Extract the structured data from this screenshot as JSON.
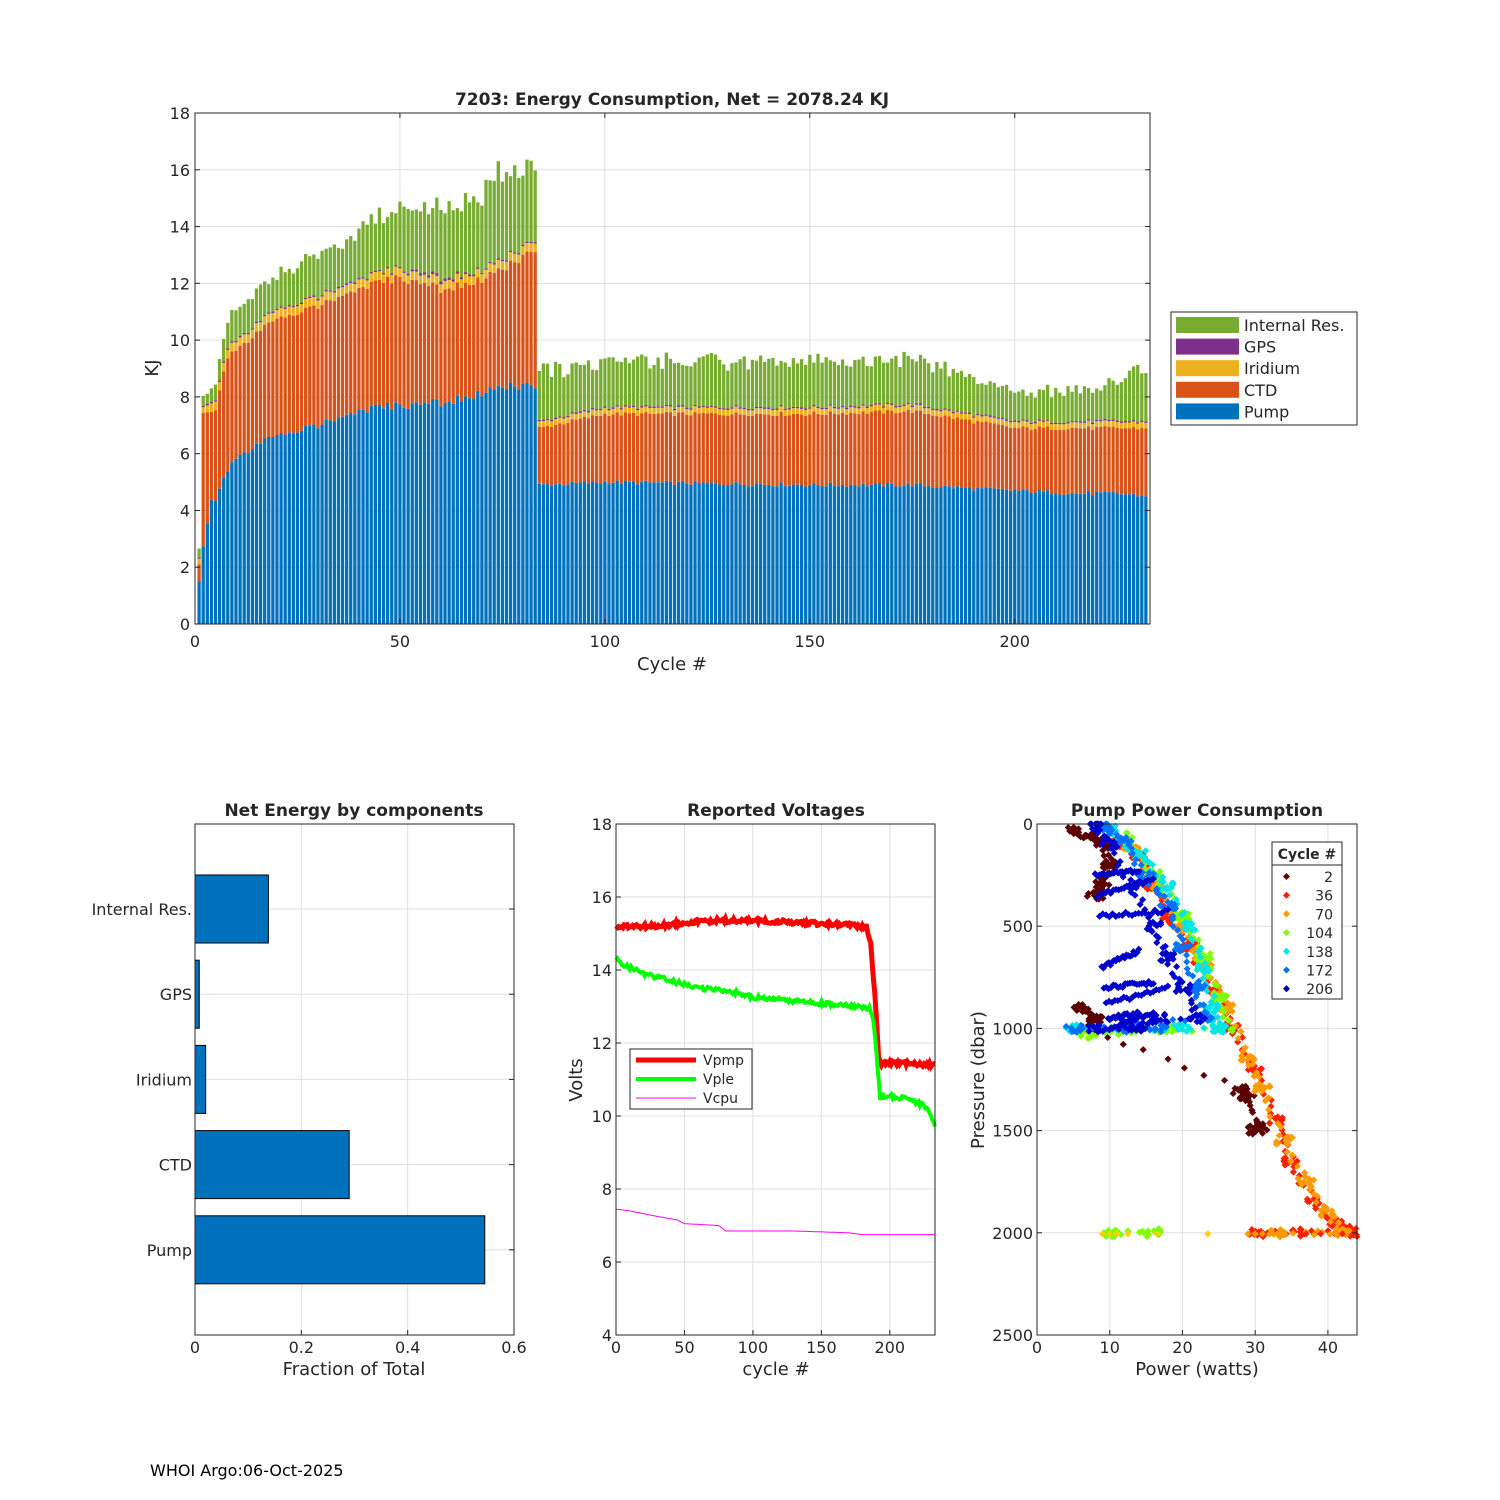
{
  "footer": "WHOI Argo:06-Oct-2025",
  "colors": {
    "pump": "#0072BD",
    "ctd": "#D95319",
    "iridium": "#EDB120",
    "gps": "#7E2F8E",
    "internal": "#77AC30",
    "vpmp": "#FF0000",
    "vple": "#00FF00",
    "vcpu": "#FF00FF"
  },
  "chart_data": [
    {
      "type": "bar",
      "stacked": true,
      "title": "7203: Energy Consumption,  Net = 2078.24 KJ",
      "xlabel": "Cycle #",
      "ylabel": "KJ",
      "xlim": [
        0,
        233
      ],
      "ylim": [
        0,
        18
      ],
      "xticks": [
        0,
        50,
        100,
        150,
        200
      ],
      "yticks": [
        0,
        2,
        4,
        6,
        8,
        10,
        12,
        14,
        16,
        18
      ],
      "legend_position": "outside-right",
      "legend": [
        "Internal Res.",
        "GPS",
        "Iridium",
        "CTD",
        "Pump"
      ],
      "series_description": "Per-cycle stacked energy; values estimated at anchor cycles and interpolated",
      "anchors": {
        "cycle": [
          1,
          2,
          4,
          5,
          8,
          10,
          20,
          30,
          40,
          50,
          60,
          70,
          76,
          83,
          84,
          100,
          150,
          175,
          200,
          215,
          225,
          233
        ],
        "pump": [
          1.5,
          2.7,
          4.3,
          4.4,
          5.4,
          5.8,
          6.7,
          7.0,
          7.5,
          7.7,
          7.8,
          8.1,
          8.4,
          8.3,
          4.9,
          5.0,
          4.9,
          4.9,
          4.7,
          4.6,
          4.6,
          4.5
        ],
        "ctd": [
          0.6,
          4.7,
          3.1,
          3.2,
          4.0,
          3.8,
          4.1,
          4.2,
          4.3,
          4.5,
          4.0,
          4.0,
          4.2,
          4.8,
          2.0,
          2.4,
          2.5,
          2.6,
          2.2,
          2.3,
          2.3,
          2.4
        ],
        "iridium": [
          0.2,
          0.2,
          0.3,
          0.3,
          0.3,
          0.3,
          0.3,
          0.3,
          0.3,
          0.3,
          0.3,
          0.3,
          0.3,
          0.3,
          0.2,
          0.2,
          0.2,
          0.2,
          0.2,
          0.2,
          0.2,
          0.2
        ],
        "gps": [
          0.05,
          0.05,
          0.05,
          0.05,
          0.05,
          0.05,
          0.05,
          0.05,
          0.05,
          0.05,
          0.1,
          0.05,
          0.05,
          0.05,
          0.05,
          0.05,
          0.05,
          0.05,
          0.05,
          0.05,
          0.05,
          0.05
        ],
        "internal": [
          0.3,
          0.3,
          0.5,
          0.6,
          0.9,
          1.0,
          1.2,
          1.4,
          1.7,
          2.1,
          2.4,
          2.7,
          3.2,
          2.4,
          1.7,
          1.6,
          1.6,
          1.6,
          1.0,
          1.1,
          1.3,
          2.0
        ]
      }
    },
    {
      "type": "barh",
      "title": "Net Energy by components",
      "xlabel": "Fraction of Total",
      "xlim": [
        0,
        0.6
      ],
      "xticks": [
        0,
        0.2,
        0.4,
        0.6
      ],
      "categories": [
        "Internal Res.",
        "GPS",
        "Iridium",
        "CTD",
        "Pump"
      ],
      "values": [
        0.138,
        0.008,
        0.02,
        0.29,
        0.545
      ]
    },
    {
      "type": "line",
      "title": "Reported Voltages",
      "xlabel": "cycle #",
      "ylabel": "Volts",
      "xlim": [
        0,
        233
      ],
      "ylim": [
        4,
        18
      ],
      "xticks": [
        0,
        50,
        100,
        150,
        200
      ],
      "yticks": [
        4,
        6,
        8,
        10,
        12,
        14,
        16,
        18
      ],
      "legend_position": "middle-left",
      "series": [
        {
          "name": "Vpmp",
          "x": [
            0,
            10,
            30,
            50,
            70,
            100,
            130,
            160,
            183,
            186,
            188,
            190,
            192,
            194,
            200,
            233
          ],
          "y": [
            15.15,
            15.2,
            15.2,
            15.3,
            15.35,
            15.35,
            15.3,
            15.25,
            15.2,
            14.7,
            13.8,
            12.8,
            11.5,
            11.45,
            11.45,
            11.4
          ]
        },
        {
          "name": "Vple",
          "x": [
            0,
            5,
            20,
            40,
            60,
            80,
            100,
            130,
            160,
            185,
            188,
            190,
            193,
            195,
            210,
            225,
            230,
            233
          ],
          "y": [
            14.3,
            14.15,
            13.9,
            13.7,
            13.5,
            13.45,
            13.25,
            13.15,
            13.05,
            12.95,
            12.6,
            11.8,
            10.5,
            10.55,
            10.5,
            10.3,
            10.0,
            9.7
          ]
        },
        {
          "name": "Vcpu",
          "x": [
            0,
            10,
            30,
            45,
            50,
            75,
            80,
            130,
            170,
            180,
            233
          ],
          "y": [
            7.45,
            7.4,
            7.25,
            7.15,
            7.05,
            7.0,
            6.85,
            6.85,
            6.8,
            6.75,
            6.75
          ]
        }
      ]
    },
    {
      "type": "scatter",
      "title": "Pump Power Consumption",
      "xlabel": "Power (watts)",
      "ylabel": "Pressure (dbar)",
      "xlim": [
        0,
        44
      ],
      "ylim": [
        0,
        2500
      ],
      "y_reversed": true,
      "xticks": [
        0,
        10,
        20,
        30,
        40
      ],
      "yticks": [
        0,
        500,
        1000,
        1500,
        2000,
        2500
      ],
      "legend_title": "Cycle #",
      "legend_position": "top-right",
      "series": [
        {
          "name": "2",
          "color": "#5C0000",
          "points": [
            [
              5,
              30
            ],
            [
              7,
              60
            ],
            [
              9,
              90
            ],
            [
              10,
              200
            ],
            [
              9,
              280
            ],
            [
              8,
              350
            ],
            [
              6,
              900
            ],
            [
              8,
              950
            ],
            [
              7,
              1000
            ],
            [
              28,
              1300
            ],
            [
              29,
              1340
            ],
            [
              30,
              1500
            ],
            [
              31,
              1480
            ]
          ]
        },
        {
          "name": "36",
          "color": "#FF2000",
          "points": [
            [
              11,
              100
            ],
            [
              14,
              150
            ],
            [
              16,
              300
            ],
            [
              18,
              450
            ],
            [
              21,
              600
            ],
            [
              24,
              800
            ],
            [
              27,
              1000
            ],
            [
              30,
              1200
            ],
            [
              33,
              1450
            ],
            [
              35,
              1650
            ],
            [
              38,
              1850
            ],
            [
              41,
              1950
            ],
            [
              44,
              2000
            ],
            [
              36,
              2000
            ],
            [
              30,
              2000
            ]
          ]
        },
        {
          "name": "70",
          "color": "#FF9A00",
          "points": [
            [
              13,
              120
            ],
            [
              17,
              300
            ],
            [
              20,
              500
            ],
            [
              23,
              700
            ],
            [
              26,
              900
            ],
            [
              29,
              1150
            ],
            [
              31,
              1300
            ],
            [
              34,
              1550
            ],
            [
              37,
              1750
            ],
            [
              40,
              1900
            ],
            [
              42,
              2000
            ],
            [
              33,
              2000
            ]
          ]
        },
        {
          "name": "104",
          "color": "#7FFF00",
          "points": [
            [
              12,
              60
            ],
            [
              16,
              250
            ],
            [
              20,
              450
            ],
            [
              23,
              650
            ],
            [
              25,
              850
            ],
            [
              26,
              1000
            ],
            [
              7,
              1030
            ],
            [
              18,
              1000
            ],
            [
              10,
              2000
            ],
            [
              16,
              2000
            ]
          ]
        },
        {
          "name": "138",
          "color": "#00E5E5",
          "points": [
            [
              10,
              20
            ],
            [
              14,
              150
            ],
            [
              18,
              300
            ],
            [
              21,
              500
            ],
            [
              23,
              700
            ],
            [
              24,
              900
            ],
            [
              25,
              1000
            ],
            [
              5,
              1000
            ],
            [
              20,
              1000
            ]
          ]
        },
        {
          "name": "172",
          "color": "#0072FF",
          "points": [
            [
              9,
              10
            ],
            [
              12,
              80
            ],
            [
              15,
              250
            ],
            [
              18,
              400
            ],
            [
              20,
              600
            ],
            [
              22,
              800
            ],
            [
              23,
              950
            ],
            [
              5,
              1000
            ],
            [
              12,
              1000
            ],
            [
              17,
              1000
            ]
          ]
        },
        {
          "name": "206",
          "color": "#0000CC",
          "points": [
            [
              8,
              10
            ],
            [
              10,
              100
            ],
            [
              13,
              300
            ],
            [
              16,
              500
            ],
            [
              18,
              650
            ],
            [
              20,
              800
            ],
            [
              22,
              950
            ],
            [
              8,
              1000
            ],
            [
              14,
              1000
            ],
            [
              17,
              950
            ]
          ]
        }
      ],
      "extra_points_desc": "Dense overlapping scatter; dark-blue bands near 250-1000 dbar, warm colors along 1000-2000 dbar diagonal and 2000 dbar line"
    }
  ]
}
